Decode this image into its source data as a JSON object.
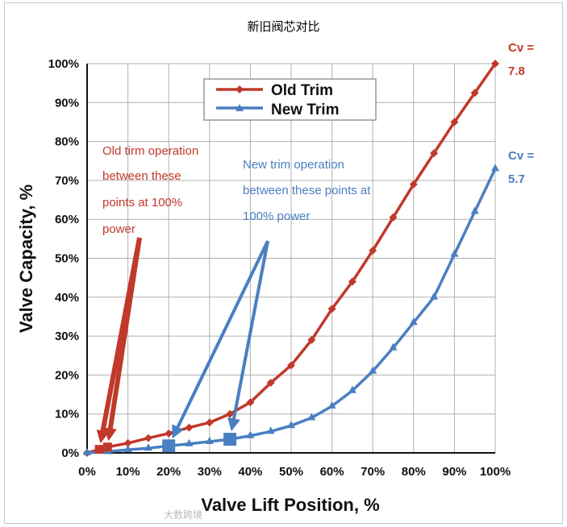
{
  "page": {
    "title": "新旧阀芯对比",
    "watermark": "大数跨境"
  },
  "colors": {
    "old": "#c0392b",
    "new": "#4a7fc1",
    "grid": "#b0b0b0",
    "axis": "#111111"
  },
  "chart_data": {
    "type": "line",
    "title": "",
    "xlabel": "Valve Lift Position, %",
    "ylabel": "Valve Capacity, %",
    "xlim": [
      0,
      100
    ],
    "ylim": [
      0,
      100
    ],
    "x_ticks": [
      "0%",
      "10%",
      "20%",
      "30%",
      "40%",
      "50%",
      "60%",
      "70%",
      "80%",
      "90%",
      "100%"
    ],
    "y_ticks": [
      "0%",
      "10%",
      "20%",
      "30%",
      "40%",
      "50%",
      "60%",
      "70%",
      "80%",
      "90%",
      "100%"
    ],
    "grid": true,
    "legend_position": "top-center",
    "series": [
      {
        "name": "Old Trim",
        "marker": "diamond",
        "x": [
          0,
          5,
          10,
          15,
          20,
          25,
          30,
          35,
          40,
          45,
          50,
          55,
          60,
          65,
          70,
          75,
          80,
          85,
          90,
          95,
          100
        ],
        "y": [
          0,
          1.5,
          2.5,
          3.8,
          5,
          6.5,
          7.8,
          10,
          13,
          18,
          22.5,
          29,
          37,
          44,
          52,
          60.5,
          69,
          77,
          85,
          92.5,
          100
        ]
      },
      {
        "name": "New Trim",
        "marker": "triangle",
        "x": [
          0,
          5,
          10,
          15,
          20,
          25,
          30,
          35,
          40,
          45,
          50,
          55,
          60,
          65,
          70,
          75,
          80,
          85,
          90,
          95,
          100
        ],
        "y": [
          0,
          0.3,
          0.8,
          1.2,
          1.8,
          2.3,
          2.9,
          3.5,
          4.4,
          5.5,
          7,
          9,
          12,
          16,
          21,
          27,
          33.5,
          40,
          51,
          62,
          73
        ]
      }
    ],
    "end_labels": [
      {
        "series": "Old Trim",
        "text": [
          "Cv =",
          "7.8"
        ]
      },
      {
        "series": "New Trim",
        "text": [
          "Cv =",
          "5.7"
        ]
      }
    ],
    "operation_points": [
      {
        "series": "Old Trim",
        "x": [
          3,
          5
        ]
      },
      {
        "series": "New Trim",
        "x": [
          20,
          35
        ]
      }
    ],
    "annotations": [
      {
        "series": "Old Trim",
        "lines": [
          "Old tirm operation",
          "between these",
          "points at 100%",
          "power"
        ]
      },
      {
        "series": "New Trim",
        "lines": [
          "New trim operation",
          "between these points at",
          "100% power"
        ]
      }
    ]
  }
}
